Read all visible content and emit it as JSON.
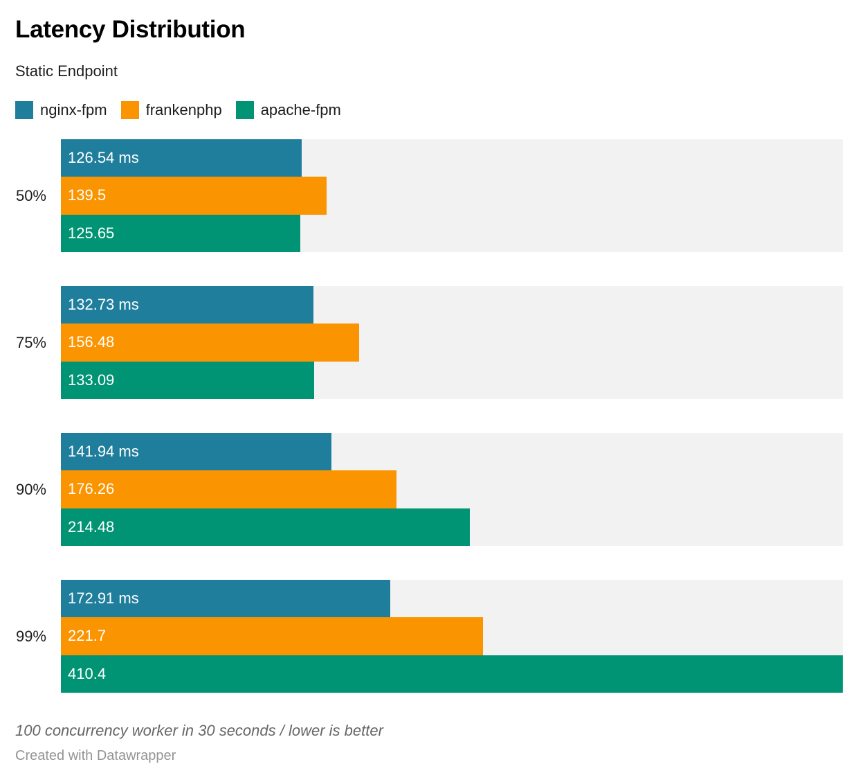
{
  "title": "Latency Distribution",
  "subtitle": "Static Endpoint",
  "legend": [
    {
      "label": "nginx-fpm",
      "color": "#207e9d"
    },
    {
      "label": "frankenphp",
      "color": "#fa9400"
    },
    {
      "label": "apache-fpm",
      "color": "#009474"
    }
  ],
  "chart_data": {
    "type": "bar",
    "orientation": "horizontal",
    "categories": [
      "50%",
      "75%",
      "90%",
      "99%"
    ],
    "series": [
      {
        "name": "nginx-fpm",
        "color": "#207e9d",
        "values": [
          126.54,
          132.73,
          141.94,
          172.91
        ],
        "labels": [
          "126.54 ms",
          "132.73 ms",
          "141.94 ms",
          "172.91 ms"
        ]
      },
      {
        "name": "frankenphp",
        "color": "#fa9400",
        "values": [
          139.5,
          156.48,
          176.26,
          221.7
        ],
        "labels": [
          "139.5",
          "156.48",
          "176.26",
          "221.7"
        ]
      },
      {
        "name": "apache-fpm",
        "color": "#009474",
        "values": [
          125.65,
          133.09,
          214.48,
          410.4
        ],
        "labels": [
          "125.65",
          "133.09",
          "214.48",
          "410.4"
        ]
      }
    ],
    "xlim": [
      0,
      410.4
    ],
    "max_value": 410.4,
    "unit": "ms",
    "track_color": "#f2f2f2",
    "grid": false,
    "legend_position": "top-left"
  },
  "footer": {
    "note": "100 concurrency worker in 30 seconds / lower is better",
    "attribution": "Created with Datawrapper"
  }
}
